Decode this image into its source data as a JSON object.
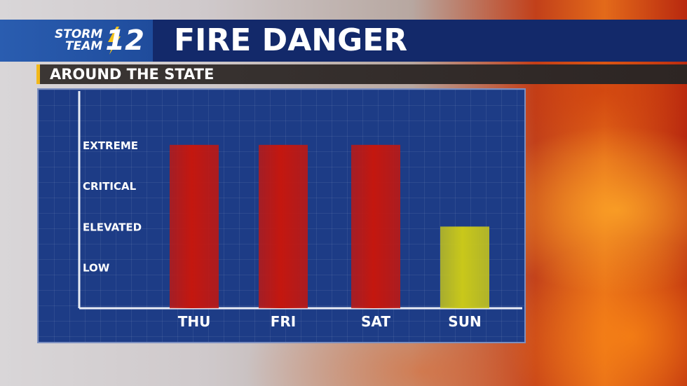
{
  "header": {
    "logo_line1": "STORM",
    "logo_line2": "TEAM",
    "logo_number": "12",
    "title": "FIRE DANGER"
  },
  "subheader": "AROUND THE STATE",
  "chart_data": {
    "type": "bar",
    "categories": [
      "THU",
      "FRI",
      "SAT",
      "SUN"
    ],
    "values": [
      4,
      4,
      4,
      2
    ],
    "y_levels": [
      "LOW",
      "ELEVATED",
      "CRITICAL",
      "EXTREME"
    ],
    "ylim": [
      0,
      4
    ],
    "colors": [
      "#c4170f",
      "#c4170f",
      "#c4170f",
      "#c9c81a"
    ],
    "grid": true,
    "title": "",
    "xlabel": "",
    "ylabel": ""
  }
}
